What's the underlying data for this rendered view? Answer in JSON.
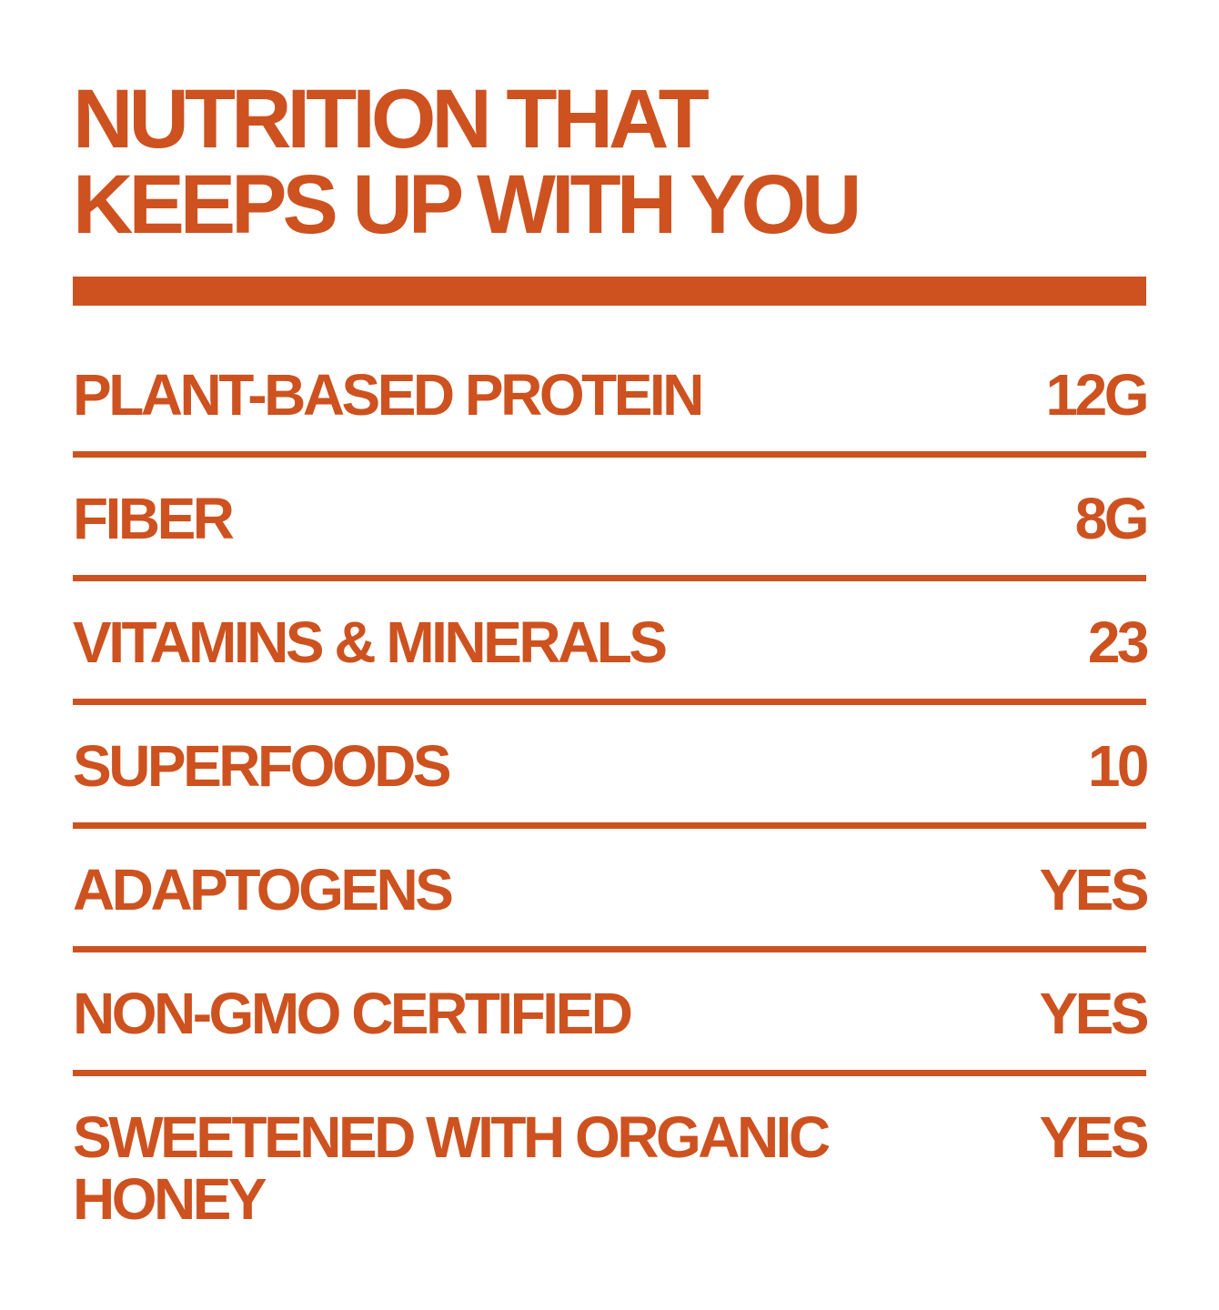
{
  "headline": {
    "line1": "NUTRITION THAT",
    "line2": "KEEPS UP WITH YOU"
  },
  "colors": {
    "accent": "#cd521f",
    "background": "#ffffff"
  },
  "rows": [
    {
      "label": "PLANT-BASED PROTEIN",
      "value": "12G"
    },
    {
      "label": "FIBER",
      "value": "8G"
    },
    {
      "label": "VITAMINS & MINERALS",
      "value": "23"
    },
    {
      "label": "SUPERFOODS",
      "value": "10"
    },
    {
      "label": "ADAPTOGENS",
      "value": "YES"
    },
    {
      "label": "NON-GMO CERTIFIED",
      "value": "YES"
    },
    {
      "label": "SWEETENED WITH ORGANIC HONEY",
      "value": "YES"
    }
  ]
}
